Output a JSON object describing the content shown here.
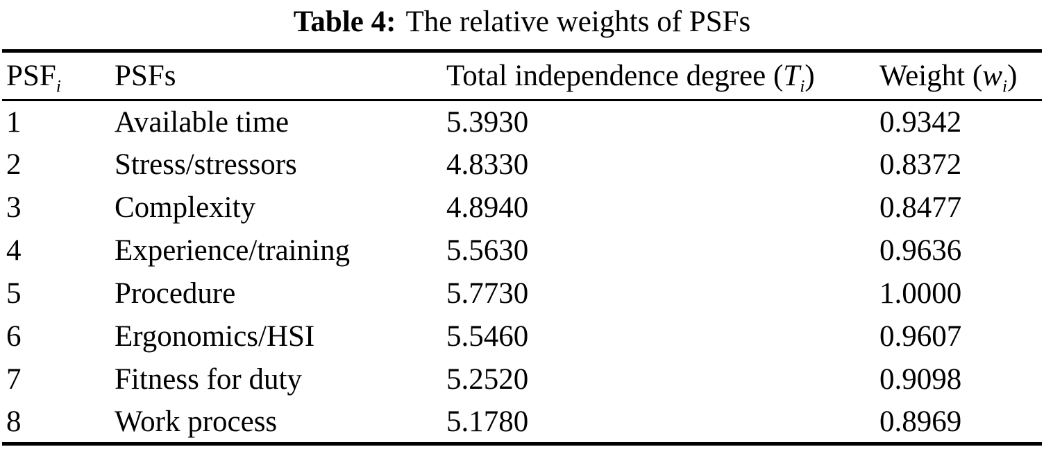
{
  "colors": {
    "background": "#ffffff",
    "text": "#000000",
    "rules": "#000000"
  },
  "title": {
    "label": "Table 4:",
    "text": "The relative weights of PSFs"
  },
  "table": {
    "headers": {
      "psf_index": {
        "text": "PSF",
        "sub": "i"
      },
      "psfs": "PSFs",
      "total_independence": {
        "prefix": "Total independence degree (",
        "var": "T",
        "sub": "i",
        "suffix": ")"
      },
      "weight": {
        "prefix": "Weight (",
        "var": "w",
        "sub": "i",
        "suffix": ")"
      }
    },
    "rows": [
      {
        "index": "1",
        "name": "Available time",
        "total_independence": "5.3930",
        "weight": "0.9342"
      },
      {
        "index": "2",
        "name": "Stress/stressors",
        "total_independence": "4.8330",
        "weight": "0.8372"
      },
      {
        "index": "3",
        "name": "Complexity",
        "total_independence": "4.8940",
        "weight": "0.8477"
      },
      {
        "index": "4",
        "name": "Experience/training",
        "total_independence": "5.5630",
        "weight": "0.9636"
      },
      {
        "index": "5",
        "name": "Procedure",
        "total_independence": "5.7730",
        "weight": "1.0000"
      },
      {
        "index": "6",
        "name": "Ergonomics/HSI",
        "total_independence": "5.5460",
        "weight": "0.9607"
      },
      {
        "index": "7",
        "name": "Fitness for duty",
        "total_independence": "5.2520",
        "weight": "0.9098"
      },
      {
        "index": "8",
        "name": "Work process",
        "total_independence": "5.1780",
        "weight": "0.8969"
      }
    ]
  }
}
